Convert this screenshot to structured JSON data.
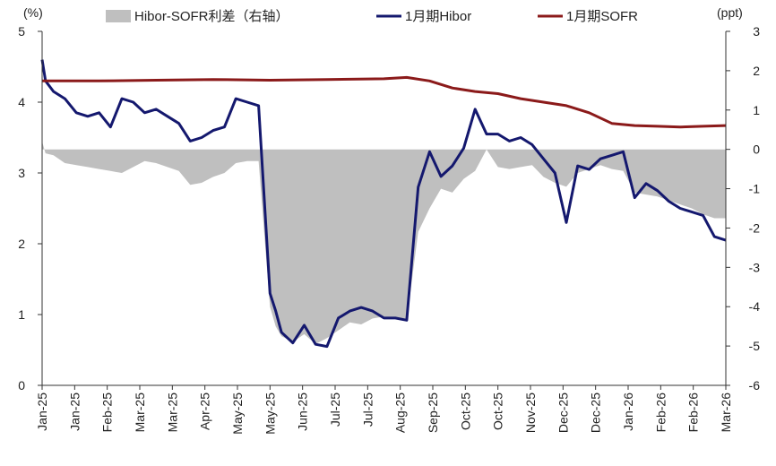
{
  "chart_data": {
    "type": "line",
    "y_left_unit": "(%)",
    "y_right_unit": "(ppt)",
    "ylim_left": [
      0,
      5
    ],
    "ylim_right": [
      -6,
      3
    ],
    "left_ticks": [
      "0",
      "1",
      "2",
      "3",
      "4",
      "5"
    ],
    "right_ticks": [
      "-6",
      "-5",
      "-4",
      "-3",
      "-2",
      "-1",
      "0",
      "1",
      "2",
      "3"
    ],
    "x_tick_labels": [
      "Jan-25",
      "Jan-25",
      "Feb-25",
      "Mar-25",
      "Mar-25",
      "Apr-25",
      "May-25",
      "May-25",
      "Jun-25",
      "Jul-25",
      "Jul-25",
      "Aug-25",
      "Sep-25",
      "Oct-25",
      "Oct-25",
      "Nov-25",
      "Dec-25",
      "Dec-25",
      "Jan-26",
      "Feb-26",
      "Feb-26",
      "Mar-26"
    ],
    "series": [
      {
        "name": "Hibor-SOFR利差（右轴）",
        "axis": "right",
        "kind": "area",
        "color": "#bfbfbf",
        "points": [
          [
            0,
            0.2
          ],
          [
            0.3,
            -0.1
          ],
          [
            1,
            -0.15
          ],
          [
            2,
            -0.35
          ],
          [
            3,
            -0.4
          ],
          [
            4,
            -0.45
          ],
          [
            5,
            -0.5
          ],
          [
            6,
            -0.55
          ],
          [
            7,
            -0.6
          ],
          [
            8,
            -0.45
          ],
          [
            9,
            -0.3
          ],
          [
            10,
            -0.35
          ],
          [
            11,
            -0.45
          ],
          [
            12,
            -0.55
          ],
          [
            13,
            -0.9
          ],
          [
            14,
            -0.85
          ],
          [
            15,
            -0.7
          ],
          [
            16,
            -0.6
          ],
          [
            17,
            -0.35
          ],
          [
            18,
            -0.3
          ],
          [
            19,
            -0.3
          ],
          [
            20,
            -4.0
          ],
          [
            20.5,
            -4.5
          ],
          [
            21,
            -4.75
          ],
          [
            22,
            -4.9
          ],
          [
            23,
            -4.7
          ],
          [
            24,
            -4.95
          ],
          [
            25,
            -4.8
          ],
          [
            26,
            -4.6
          ],
          [
            27,
            -4.4
          ],
          [
            28,
            -4.45
          ],
          [
            29,
            -4.3
          ],
          [
            30,
            -4.25
          ],
          [
            31,
            -4.3
          ],
          [
            32,
            -4.35
          ],
          [
            33,
            -2.1
          ],
          [
            34,
            -1.5
          ],
          [
            35,
            -1.0
          ],
          [
            36,
            -1.1
          ],
          [
            37,
            -0.75
          ],
          [
            38,
            -0.55
          ],
          [
            39,
            0.0
          ],
          [
            40,
            -0.45
          ],
          [
            41,
            -0.5
          ],
          [
            42,
            -0.45
          ],
          [
            43,
            -0.4
          ],
          [
            44,
            -0.7
          ],
          [
            45,
            -0.85
          ],
          [
            46,
            -0.95
          ],
          [
            47,
            -0.6
          ],
          [
            48,
            -0.5
          ],
          [
            49,
            -0.4
          ],
          [
            50,
            -0.5
          ],
          [
            51,
            -0.55
          ],
          [
            52,
            -1.1
          ],
          [
            53,
            -1.15
          ],
          [
            54,
            -1.2
          ],
          [
            55,
            -1.3
          ],
          [
            56,
            -1.4
          ],
          [
            57,
            -1.5
          ],
          [
            58,
            -1.65
          ],
          [
            59,
            -1.75
          ],
          [
            60,
            -1.75
          ]
        ]
      },
      {
        "name": "1月期Hibor",
        "axis": "left",
        "kind": "line",
        "color": "#14186e",
        "points": [
          [
            0,
            4.6
          ],
          [
            0.3,
            4.3
          ],
          [
            1,
            4.15
          ],
          [
            2,
            4.05
          ],
          [
            3,
            3.85
          ],
          [
            4,
            3.8
          ],
          [
            5,
            3.85
          ],
          [
            6,
            3.65
          ],
          [
            7,
            4.05
          ],
          [
            8,
            4.0
          ],
          [
            9,
            3.85
          ],
          [
            10,
            3.9
          ],
          [
            11,
            3.8
          ],
          [
            12,
            3.7
          ],
          [
            13,
            3.45
          ],
          [
            14,
            3.5
          ],
          [
            15,
            3.6
          ],
          [
            16,
            3.65
          ],
          [
            17,
            4.05
          ],
          [
            18,
            4.0
          ],
          [
            19,
            3.95
          ],
          [
            20,
            1.3
          ],
          [
            20.5,
            1.05
          ],
          [
            21,
            0.75
          ],
          [
            22,
            0.6
          ],
          [
            23,
            0.85
          ],
          [
            24,
            0.58
          ],
          [
            25,
            0.55
          ],
          [
            26,
            0.95
          ],
          [
            27,
            1.05
          ],
          [
            28,
            1.1
          ],
          [
            29,
            1.05
          ],
          [
            30,
            0.95
          ],
          [
            31,
            0.95
          ],
          [
            32,
            0.92
          ],
          [
            33,
            2.8
          ],
          [
            34,
            3.3
          ],
          [
            35,
            2.95
          ],
          [
            36,
            3.1
          ],
          [
            37,
            3.35
          ],
          [
            38,
            3.9
          ],
          [
            39,
            3.55
          ],
          [
            40,
            3.55
          ],
          [
            41,
            3.45
          ],
          [
            42,
            3.5
          ],
          [
            43,
            3.4
          ],
          [
            44,
            3.2
          ],
          [
            45,
            3.0
          ],
          [
            46,
            2.3
          ],
          [
            47,
            3.1
          ],
          [
            48,
            3.05
          ],
          [
            49,
            3.2
          ],
          [
            50,
            3.25
          ],
          [
            51,
            3.3
          ],
          [
            52,
            2.65
          ],
          [
            53,
            2.85
          ],
          [
            54,
            2.75
          ],
          [
            55,
            2.6
          ],
          [
            56,
            2.5
          ],
          [
            57,
            2.45
          ],
          [
            58,
            2.4
          ],
          [
            59,
            2.1
          ],
          [
            60,
            2.05
          ]
        ]
      },
      {
        "name": "1月期SOFR",
        "axis": "left",
        "kind": "line",
        "color": "#8b1a1a",
        "points": [
          [
            0,
            4.3
          ],
          [
            5,
            4.3
          ],
          [
            10,
            4.31
          ],
          [
            15,
            4.32
          ],
          [
            20,
            4.31
          ],
          [
            25,
            4.32
          ],
          [
            30,
            4.33
          ],
          [
            32,
            4.35
          ],
          [
            34,
            4.3
          ],
          [
            36,
            4.2
          ],
          [
            38,
            4.15
          ],
          [
            40,
            4.12
          ],
          [
            42,
            4.05
          ],
          [
            44,
            4.0
          ],
          [
            46,
            3.95
          ],
          [
            48,
            3.85
          ],
          [
            50,
            3.7
          ],
          [
            52,
            3.67
          ],
          [
            54,
            3.66
          ],
          [
            56,
            3.65
          ],
          [
            58,
            3.66
          ],
          [
            60,
            3.67
          ]
        ]
      }
    ]
  }
}
